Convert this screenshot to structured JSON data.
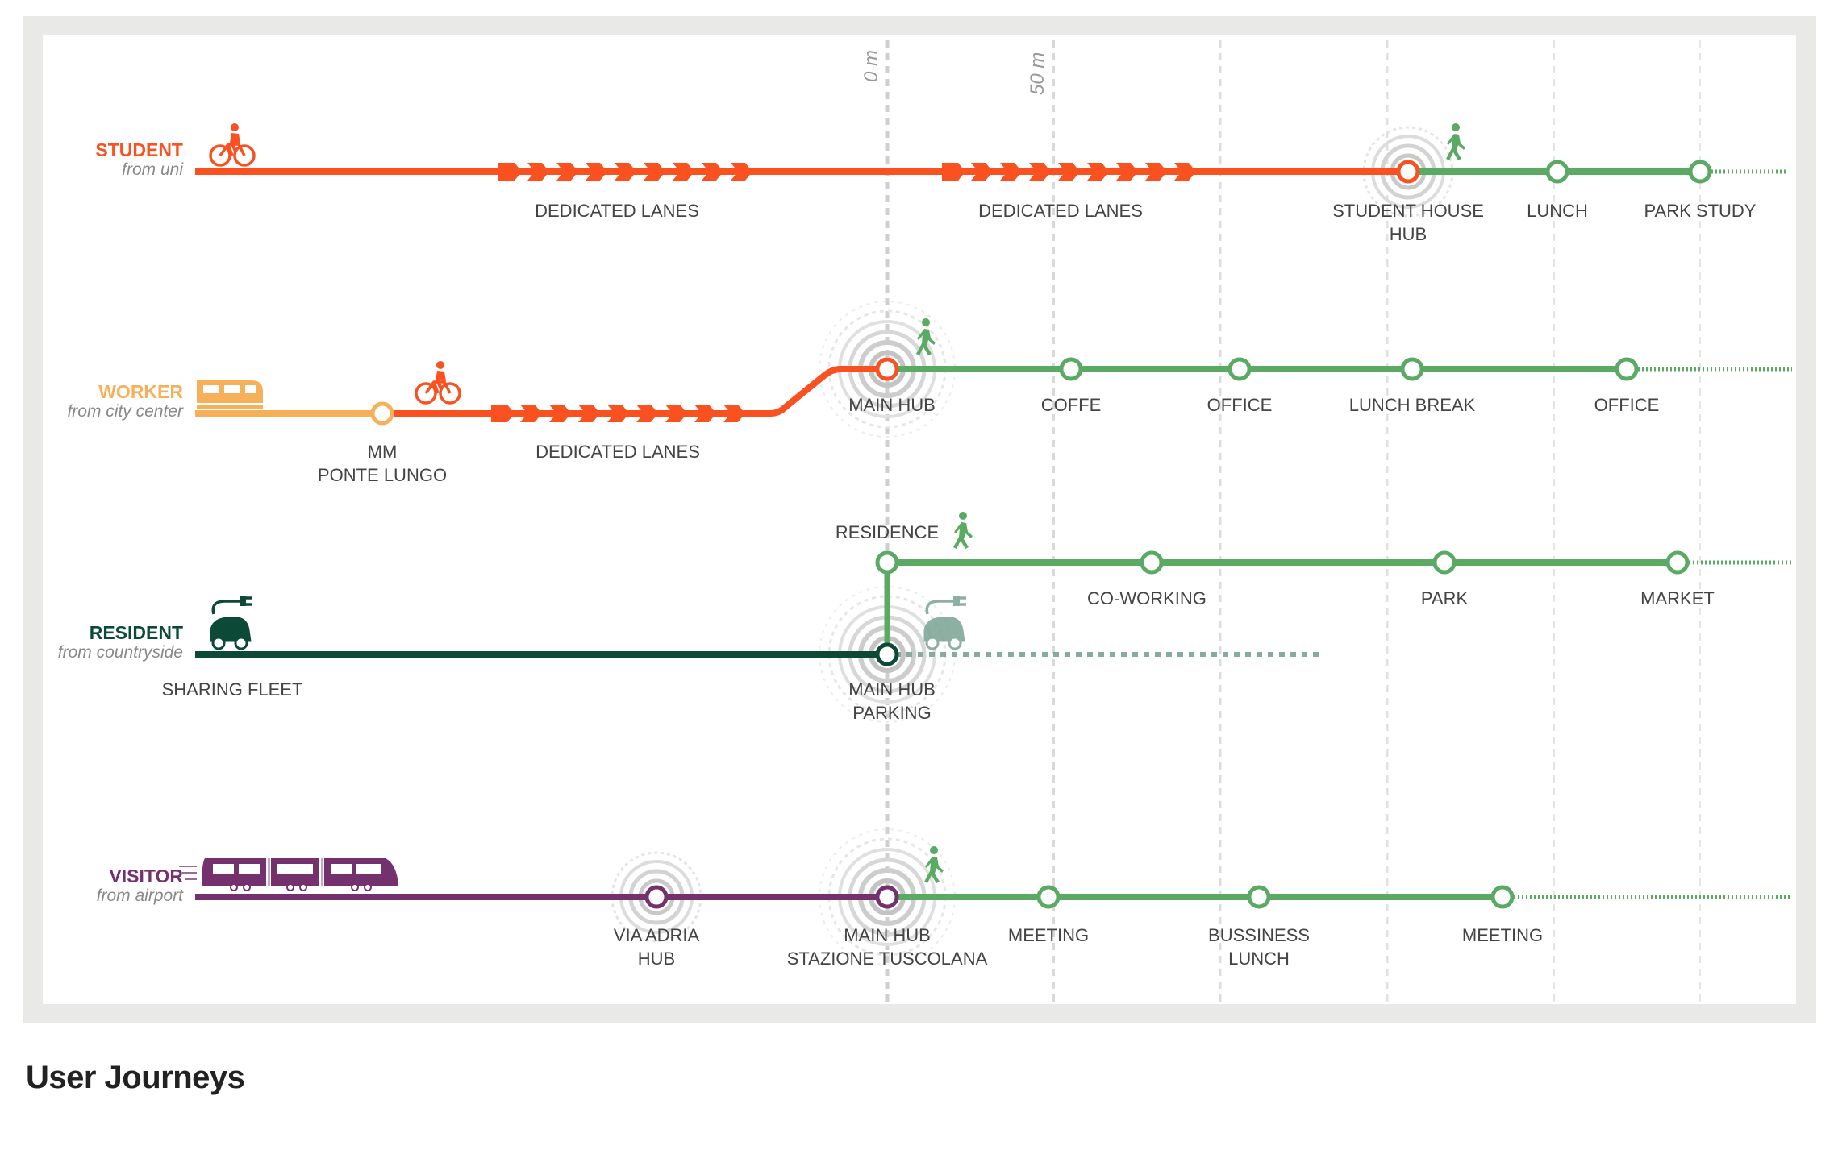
{
  "caption": "User Journeys",
  "distance_labels": [
    "0 m",
    "50 m"
  ],
  "colors": {
    "orange": "#f95120",
    "yellow": "#f7b05a",
    "green": "#5aaa64",
    "dark_green": "#0c4a37",
    "purple": "#75306e",
    "grey": "#bdbdbd"
  },
  "rows": [
    {
      "name": "STUDENT",
      "subtitle": "from uni",
      "color": "#f95120",
      "vehicle_icon": "bicycle-icon",
      "labels": [
        "DEDICATED LANES",
        "DEDICATED LANES",
        "STUDENT HOUSE",
        "HUB",
        "LUNCH",
        "PARK STUDY"
      ]
    },
    {
      "name": "WORKER",
      "subtitle": "from city center",
      "color": "#f7b05a",
      "vehicle_icon": "tram-icon",
      "labels": [
        "MM",
        "PONTE LUNGO",
        "DEDICATED LANES",
        "MAIN HUB",
        "COFFE",
        "OFFICE",
        "LUNCH BREAK",
        "OFFICE"
      ]
    },
    {
      "name": "RESIDENT",
      "subtitle": "from countryside",
      "color": "#0c4a37",
      "vehicle_icon": "electric-car-icon",
      "labels": [
        "SHARING FLEET",
        "MAIN HUB",
        "PARKING",
        "RESIDENCE",
        "CO-WORKING",
        "PARK",
        "MARKET"
      ]
    },
    {
      "name": "VISITOR",
      "subtitle": "from airport",
      "color": "#75306e",
      "vehicle_icon": "train-icon",
      "labels": [
        "VIA ADRIA",
        "HUB",
        "MAIN HUB",
        "STAZIONE TUSCOLANA",
        "MEETING",
        "BUSSINESS",
        "LUNCH",
        "MEETING"
      ]
    }
  ]
}
